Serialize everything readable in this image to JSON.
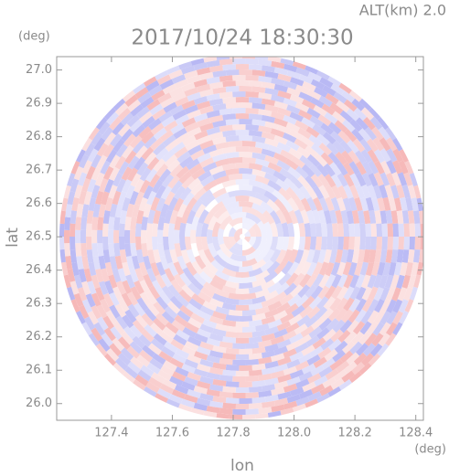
{
  "chart_data": {
    "type": "radar-ppi",
    "title": "2017/10/24 18:30:30",
    "altitude_label": "ALT(km) 2.0",
    "y_unit": "(deg)",
    "x_unit": "(deg)",
    "xlabel": "lon",
    "ylabel": "lat",
    "xlim": [
      127.22,
      128.425
    ],
    "ylim": [
      25.95,
      27.04
    ],
    "xticks": [
      {
        "value": 127.4,
        "label": "127.4"
      },
      {
        "value": 127.6,
        "label": "127.6"
      },
      {
        "value": 127.8,
        "label": "127.8"
      },
      {
        "value": 128.0,
        "label": "128.0"
      },
      {
        "value": 128.2,
        "label": "128.2"
      },
      {
        "value": 128.4,
        "label": "128.4"
      }
    ],
    "yticks": [
      {
        "value": 26.0,
        "label": "26.0"
      },
      {
        "value": 26.1,
        "label": "26.1"
      },
      {
        "value": 26.2,
        "label": "26.2"
      },
      {
        "value": 26.3,
        "label": "26.3"
      },
      {
        "value": 26.4,
        "label": "26.4"
      },
      {
        "value": 26.5,
        "label": "26.5"
      },
      {
        "value": 26.6,
        "label": "26.6"
      },
      {
        "value": 26.7,
        "label": "26.7"
      },
      {
        "value": 26.8,
        "label": "26.8"
      },
      {
        "value": 26.9,
        "label": "26.9"
      },
      {
        "value": 27.0,
        "label": "27.0"
      }
    ]
  }
}
